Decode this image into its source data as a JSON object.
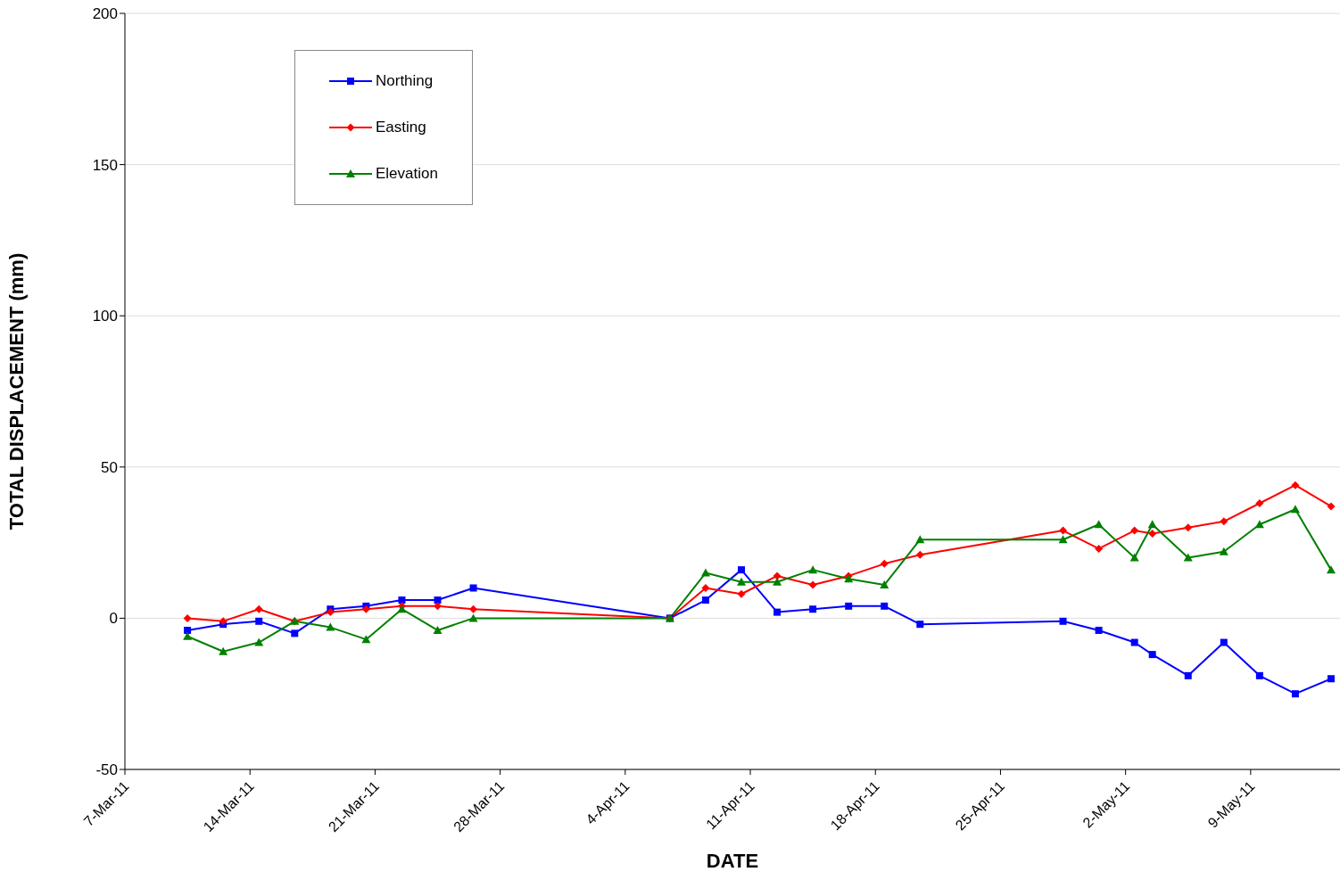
{
  "chart_data": {
    "type": "line",
    "xlabel": "DATE",
    "ylabel": "TOTAL DISPLACEMENT (mm)",
    "x": [
      "--03-10T12:00",
      "--03-12T12:00",
      "--03-14T12:00",
      "--03-16T12:00",
      "--03-18T12:00",
      "--03-20T12:00",
      "--03-22T12:00",
      "--03-24T12:00",
      "--03-26T12:00",
      "--04-06T12:00",
      "--04-08T12:00",
      "--04-10T12:00",
      "--04-12T12:00",
      "--04-14T12:00",
      "--04-16T12:00",
      "--04-18T12:00",
      "--04-20T12:00",
      "--04-28T12:00",
      "--04-30T12:00",
      "--05-02T12:00",
      "--05-03T12:00",
      "--05-05T12:00",
      "--05-07T12:00",
      "--05-09T12:00",
      "--05-11T12:00",
      "--05-13T12:00"
    ],
    "series": [
      {
        "name": "Northing",
        "color": "#0000ff",
        "marker": "square",
        "values": [
          -4,
          -2,
          -1,
          -5,
          3,
          4,
          6,
          6,
          10,
          0,
          6,
          16,
          2,
          3,
          4,
          4,
          -2,
          -1,
          -4,
          -8,
          -12,
          -19,
          -8,
          -19,
          -25,
          -20
        ]
      },
      {
        "name": "Easting",
        "color": "#ff0000",
        "marker": "diamond",
        "values": [
          0,
          -1,
          3,
          -1,
          2,
          3,
          4,
          4,
          3,
          0,
          10,
          8,
          14,
          11,
          14,
          18,
          21,
          29,
          23,
          29,
          28,
          30,
          32,
          38,
          44,
          37
        ]
      },
      {
        "name": "Elevation",
        "color": "#008000",
        "marker": "triangle",
        "values": [
          -6,
          -11,
          -8,
          -1,
          -3,
          -7,
          3,
          -4,
          0,
          0,
          15,
          12,
          12,
          16,
          13,
          11,
          26,
          26,
          31,
          20,
          31,
          20,
          22,
          31,
          36,
          16
        ]
      }
    ],
    "xlim": [
      "--03-07",
      "--05-14"
    ],
    "xticks": [
      {
        "value": "--03-07",
        "label": "7-Mar-11"
      },
      {
        "value": "--03-14",
        "label": "14-Mar-11"
      },
      {
        "value": "--03-21",
        "label": "21-Mar-11"
      },
      {
        "value": "--03-28",
        "label": "28-Mar-11"
      },
      {
        "value": "--04-04",
        "label": "4-Apr-11"
      },
      {
        "value": "--04-11",
        "label": "11-Apr-11"
      },
      {
        "value": "--04-18",
        "label": "18-Apr-11"
      },
      {
        "value": "--04-25",
        "label": "25-Apr-11"
      },
      {
        "value": "--05-02",
        "label": "2-May-11"
      },
      {
        "value": "--05-09",
        "label": "9-May-11"
      }
    ],
    "ylim": [
      -50,
      200
    ],
    "yticks": [
      -50,
      0,
      50,
      100,
      150,
      200
    ],
    "grid": "y",
    "legend": "top left",
    "line_style": "solid"
  }
}
